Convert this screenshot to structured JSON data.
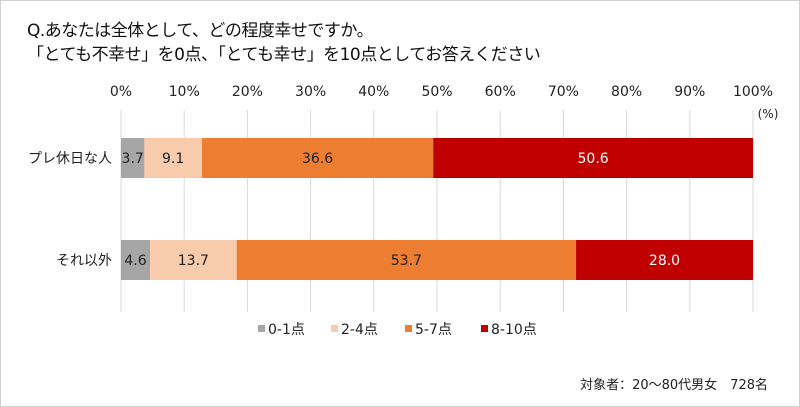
{
  "chart_data": {
    "type": "bar",
    "orientation": "horizontal-stacked-100",
    "title_lines": [
      "Q.あなたは全体として、どの程度幸せですか。",
      "「とても不幸せ」を0点、「とても幸せ」を10点としてお答えください"
    ],
    "categories": [
      "プレ休日な人",
      "それ以外"
    ],
    "series": [
      {
        "name": "0-1点",
        "color": "#a6a6a6",
        "values": [
          3.7,
          4.6
        ]
      },
      {
        "name": "2-4点",
        "color": "#f8cbad",
        "values": [
          9.1,
          13.7
        ]
      },
      {
        "name": "5-7点",
        "color": "#ed7d31",
        "values": [
          36.6,
          53.7
        ]
      },
      {
        "name": "8-10点",
        "color": "#c00000",
        "values": [
          50.6,
          28.0
        ]
      }
    ],
    "label_colors": [
      "#222222",
      "#222222",
      "#222222",
      "#ffffff"
    ],
    "xticks": [
      "0%",
      "10%",
      "20%",
      "30%",
      "40%",
      "50%",
      "60%",
      "70%",
      "80%",
      "90%",
      "100%"
    ],
    "xlim": [
      0,
      100
    ],
    "unit_label": "(%)",
    "grid": true,
    "legend_position": "bottom",
    "footnote": "対象者：20～80代男女　728名"
  }
}
